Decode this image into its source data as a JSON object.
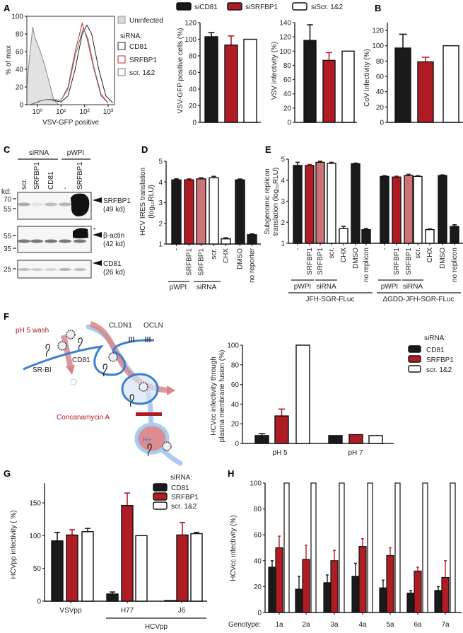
{
  "colors": {
    "black": "#1a1a1a",
    "red": "#b01c24",
    "pink": "#cd7277",
    "white": "#ffffff",
    "membrane_blue": "#3f7fd0",
    "light_blue": "#a9cdf0",
    "arrow_pink": "#d9868b"
  },
  "panel_labels": [
    "A",
    "B",
    "C",
    "D",
    "E",
    "F",
    "G",
    "H"
  ],
  "legend_top": [
    {
      "label": "siCD81",
      "fill": "black"
    },
    {
      "label": "siSRFBP1",
      "fill": "red"
    },
    {
      "label": "siScr. 1&2",
      "fill": "white"
    }
  ],
  "blot": {
    "group_headers": [
      "siRNA",
      "pWPI"
    ],
    "lanes": [
      "scr.",
      "SRFBP1",
      "CD81",
      "-",
      "SRFBP1"
    ],
    "kd_label": "kd:",
    "markers": [
      "70",
      "55",
      "55",
      "35",
      "25"
    ],
    "bands": [
      {
        "name": "SRFBP1",
        "size": "(49 kd)"
      },
      {
        "name": "β-actin",
        "size": "(42 kd)"
      },
      {
        "name": "CD81",
        "size": "(26 kd)"
      }
    ],
    "asterisk": "*"
  },
  "diagram": {
    "ph_wash": "pH 5 wash",
    "cldn1": "CLDN1",
    "ocln": "OCLN",
    "cd81": "CD81",
    "srbi": "SR-BI",
    "concanamycin": "Concanamycin A",
    "proton": "H+"
  },
  "chart_data": [
    {
      "type": "line",
      "xlabel": "VSV-GFP positive",
      "ylabel": "% of max",
      "x_scale": "log",
      "xlim_log10": [
        -0.45,
        3.27
      ],
      "ylim": [
        0,
        100
      ],
      "yticks": [
        0,
        20,
        40,
        60,
        80,
        100
      ],
      "xticks": [
        "10⁰",
        "10¹",
        "10²",
        "10³"
      ],
      "legend_title": "siRNA:",
      "series": [
        {
          "name": "Uninfected",
          "style": "filled-grey",
          "x_log10": [
            -0.45,
            -0.35,
            -0.2,
            -0.1,
            0.1,
            0.3,
            0.5,
            0.7,
            0.9
          ],
          "y": [
            20,
            50,
            88,
            75,
            62,
            45,
            25,
            5,
            0
          ]
        },
        {
          "name": "CD81",
          "style": "black",
          "x_log10": [
            -0.3,
            0.2,
            0.5,
            1.0,
            1.3,
            1.6,
            1.9,
            2.1,
            2.3,
            2.6,
            2.9,
            3.2
          ],
          "y": [
            0,
            5,
            6,
            3,
            10,
            40,
            80,
            90,
            80,
            40,
            10,
            2
          ]
        },
        {
          "name": "SRFBP1",
          "style": "red",
          "x_log10": [
            -0.3,
            0.2,
            0.5,
            1.0,
            1.3,
            1.6,
            1.9,
            2.1,
            2.4,
            2.7,
            3.0
          ],
          "y": [
            0,
            5,
            6,
            5,
            20,
            60,
            92,
            75,
            40,
            10,
            2
          ]
        },
        {
          "name": "scr. 1&2",
          "style": "grey",
          "x_log10": [
            -0.3,
            0.2,
            0.5,
            1.0,
            1.3,
            1.6,
            1.95,
            2.15,
            2.4,
            2.7,
            3.0
          ],
          "y": [
            0,
            5,
            6,
            5,
            18,
            55,
            87,
            74,
            42,
            12,
            2
          ]
        }
      ]
    },
    {
      "type": "bar",
      "ylabel": "VSV-GFP positive cells (%)",
      "ylim": [
        0,
        120
      ],
      "yticks": [
        0,
        20,
        40,
        60,
        80,
        100,
        120
      ],
      "bars": [
        {
          "value": 103,
          "error": 5,
          "fill": "black"
        },
        {
          "value": 93,
          "error": 11,
          "fill": "red"
        },
        {
          "value": 100,
          "error": 0,
          "fill": "white"
        }
      ]
    },
    {
      "type": "bar",
      "ylabel": "VSV infectivity (%)",
      "ylim": [
        0,
        140
      ],
      "yticks": [
        0,
        20,
        40,
        60,
        80,
        100,
        120,
        140
      ],
      "bars": [
        {
          "value": 115,
          "error": 22,
          "fill": "black"
        },
        {
          "value": 87,
          "error": 11,
          "fill": "red"
        },
        {
          "value": 100,
          "error": 0,
          "fill": "white"
        }
      ]
    },
    {
      "type": "bar",
      "ylabel": "CoV infectivity (%)",
      "ylim": [
        0,
        130
      ],
      "yticks": [
        0,
        20,
        40,
        60,
        80,
        100,
        120
      ],
      "bars": [
        {
          "value": 97,
          "error": 18,
          "fill": "black"
        },
        {
          "value": 79,
          "error": 6,
          "fill": "red"
        },
        {
          "value": 100,
          "error": 0,
          "fill": "white"
        }
      ]
    },
    {
      "type": "bar",
      "ylabel": [
        "HCV IRES translation",
        "(log₁₀RLU)"
      ],
      "ylim": [
        1,
        5
      ],
      "yticks": [
        1,
        2,
        3,
        4,
        5
      ],
      "categories": [
        "-",
        "SRFBP1",
        "SRFBP1",
        "scr.",
        "CHX",
        "DMSO",
        "no reporter"
      ],
      "groups": [
        "pWPI",
        "siRNA"
      ],
      "bars": [
        {
          "value": 4.1,
          "error": 0.05,
          "fill": "black"
        },
        {
          "value": 4.1,
          "error": 0.05,
          "fill": "red"
        },
        {
          "value": 4.15,
          "error": 0.05,
          "fill": "pink"
        },
        {
          "value": 4.2,
          "error": 0.07,
          "fill": "white"
        },
        {
          "value": 1.25,
          "error": 0.05,
          "fill": "white"
        },
        {
          "value": 4.1,
          "error": 0.04,
          "fill": "black"
        },
        {
          "value": 1.45,
          "error": 0.04,
          "fill": "black"
        }
      ]
    },
    {
      "type": "bar",
      "ylabel": [
        "Subgenomic replicon",
        "translation (log₁₀RLU)"
      ],
      "ylim": [
        1,
        5
      ],
      "yticks": [
        1,
        2,
        3,
        4,
        5
      ],
      "categories": [
        "-",
        "SRFBP1",
        "SRFBP1",
        "scr.",
        "CHX",
        "DMSO",
        "no replicon",
        "-",
        "SRFBP1",
        "SRFBP1",
        "scr.",
        "CHX",
        "DMSO",
        "no replicon"
      ],
      "groups": [
        "pWPI",
        "siRNA",
        "pWPI",
        "siRNA"
      ],
      "constructs": [
        "JFH-SGR-FLuc",
        "ΔGDD-JFH-SGR-FLuc"
      ],
      "bars": [
        {
          "value": 4.7,
          "error": 0.15,
          "fill": "black"
        },
        {
          "value": 4.7,
          "error": 0.05,
          "fill": "red"
        },
        {
          "value": 4.85,
          "error": 0.05,
          "fill": "pink"
        },
        {
          "value": 4.8,
          "error": 0.05,
          "fill": "white"
        },
        {
          "value": 1.7,
          "error": 0.1,
          "fill": "white"
        },
        {
          "value": 4.78,
          "error": 0.03,
          "fill": "black"
        },
        {
          "value": 1.65,
          "error": 0.05,
          "fill": "black"
        },
        {
          "value": 4.18,
          "error": 0.03,
          "fill": "black"
        },
        {
          "value": 4.15,
          "error": 0.04,
          "fill": "red"
        },
        {
          "value": 4.22,
          "error": 0.06,
          "fill": "pink"
        },
        {
          "value": 4.18,
          "error": 0.03,
          "fill": "white"
        },
        {
          "value": 1.65,
          "error": 0.03,
          "fill": "white"
        },
        {
          "value": 4.22,
          "error": 0.03,
          "fill": "black"
        },
        {
          "value": 1.8,
          "error": 0.08,
          "fill": "black"
        }
      ]
    },
    {
      "type": "bar",
      "ylabel": [
        "HCVcc infectivity through",
        "plasma membrane fusion (%)"
      ],
      "ylim": [
        0,
        100
      ],
      "yticks": [
        0,
        20,
        40,
        60,
        80,
        100
      ],
      "xticks": [
        "pH 5",
        "pH 7"
      ],
      "legend_title": "siRNA:",
      "legend": [
        {
          "label": "CD81",
          "fill": "black"
        },
        {
          "label": "SRFBP1",
          "fill": "red"
        },
        {
          "label": "scr. 1&2",
          "fill": "white"
        }
      ],
      "bars": [
        {
          "value": 8,
          "error": 2,
          "fill": "black"
        },
        {
          "value": 28,
          "error": 7,
          "fill": "red"
        },
        {
          "value": 100,
          "error": 0,
          "fill": "white"
        },
        {
          "value": 8,
          "error": 0,
          "fill": "black"
        },
        {
          "value": 9,
          "error": 0,
          "fill": "red"
        },
        {
          "value": 8,
          "error": 0,
          "fill": "white"
        }
      ]
    },
    {
      "type": "bar",
      "ylabel": "HCVpp infectivity ( %)",
      "ylim": [
        0,
        180
      ],
      "yticks": [
        0,
        50,
        100,
        150
      ],
      "xticks": [
        "VSVpp",
        "H77",
        "J6"
      ],
      "group_label": "HCVpp",
      "legend_title": "siRNA:",
      "legend": [
        {
          "label": "CD81",
          "fill": "black"
        },
        {
          "label": "SRFBP1",
          "fill": "red"
        },
        {
          "label": "scr. 1&2",
          "fill": "white"
        }
      ],
      "bars": [
        {
          "value": 92,
          "error": 13,
          "fill": "black"
        },
        {
          "value": 101,
          "error": 8,
          "fill": "red"
        },
        {
          "value": 106,
          "error": 5,
          "fill": "white"
        },
        {
          "value": 11,
          "error": 3,
          "fill": "black"
        },
        {
          "value": 146,
          "error": 19,
          "fill": "red"
        },
        {
          "value": 100,
          "error": 0,
          "fill": "white"
        },
        {
          "value": 1,
          "error": 0,
          "fill": "black"
        },
        {
          "value": 101,
          "error": 19,
          "fill": "red"
        },
        {
          "value": 103,
          "error": 2,
          "fill": "white"
        }
      ]
    },
    {
      "type": "bar",
      "ylabel": "HCVcc infectivity (%)",
      "ylim": [
        0,
        100
      ],
      "yticks": [
        0,
        20,
        40,
        60,
        80,
        100
      ],
      "xprefix": "Genotype:",
      "xticks": [
        "1a",
        "2a",
        "3a",
        "4a",
        "5a",
        "6a",
        "7a"
      ],
      "series": [
        {
          "name": "CD81",
          "fill": "black",
          "values": [
            35,
            18,
            23,
            28,
            19,
            15,
            17
          ],
          "errors": [
            5,
            10,
            6,
            10,
            6,
            2,
            3
          ]
        },
        {
          "name": "SRFBP1",
          "fill": "red",
          "values": [
            50,
            41,
            40,
            51,
            44,
            32,
            27
          ],
          "errors": [
            9,
            11,
            8,
            6,
            6,
            3,
            13
          ]
        },
        {
          "name": "scr. 1&2",
          "fill": "white",
          "values": [
            100,
            100,
            100,
            100,
            100,
            100,
            100
          ],
          "errors": [
            0,
            0,
            0,
            0,
            0,
            0,
            0
          ]
        }
      ]
    }
  ]
}
